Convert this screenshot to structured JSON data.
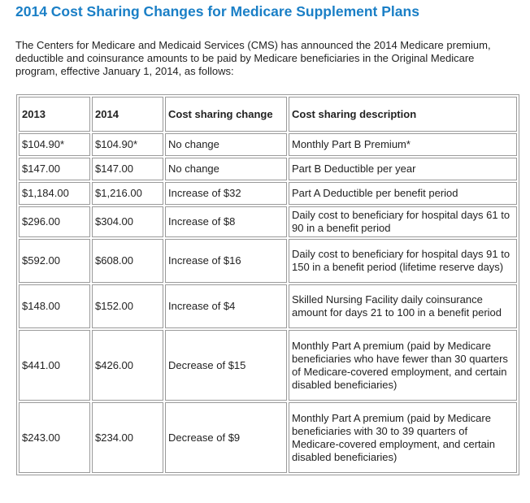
{
  "title": "2014 Cost Sharing Changes for Medicare Supplement Plans",
  "intro": "The Centers for Medicare and Medicaid Services (CMS) has announced the 2014 Medicare premium, deductible and coinsurance amounts to be paid by Medicare beneficiaries in the Original Medicare program, effective January 1, 2014, as follows:",
  "table": {
    "headers": [
      "2013",
      "2014",
      "Cost sharing change",
      "Cost sharing description"
    ],
    "rows": [
      [
        "$104.90*",
        "$104.90*",
        "No change",
        "Monthly Part B Premium*"
      ],
      [
        "$147.00",
        "$147.00",
        "No change",
        "Part B Deductible per year"
      ],
      [
        "$1,184.00",
        "$1,216.00",
        "Increase of $32",
        "Part A Deductible per benefit period"
      ],
      [
        "$296.00",
        "$304.00",
        "Increase of $8",
        "Daily cost to beneficiary for hospital days 61 to 90 in a benefit period"
      ],
      [
        "$592.00",
        "$608.00",
        "Increase of $16",
        "Daily cost to beneficiary for hospital days 91 to 150 in a benefit period (lifetime reserve days)"
      ],
      [
        "$148.00",
        "$152.00",
        "Increase of $4",
        "Skilled Nursing Facility daily coinsurance amount for days 21 to 100 in a benefit period"
      ],
      [
        "$441.00",
        "$426.00",
        "Decrease of $15",
        "Monthly Part A premium (paid by Medicare beneficiaries who have fewer than 30 quarters of Medicare-covered employment, and certain disabled beneficiaries)"
      ],
      [
        "$243.00",
        "$234.00",
        "Decrease of $9",
        "Monthly Part A premium (paid by Medicare beneficiaries with 30 to 39 quarters of Medicare-covered employment, and certain disabled beneficiaries)"
      ]
    ]
  }
}
